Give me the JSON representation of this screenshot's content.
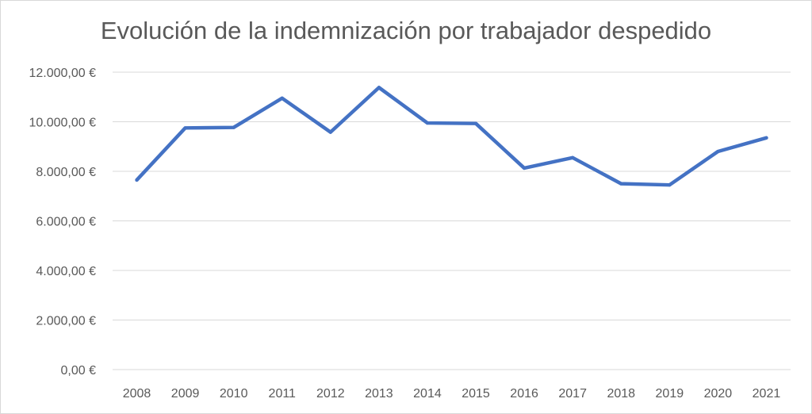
{
  "chart_data": {
    "type": "line",
    "title": "Evolución de la indemnización por trabajador despedido",
    "categories": [
      "2008",
      "2009",
      "2010",
      "2011",
      "2012",
      "2013",
      "2014",
      "2015",
      "2016",
      "2017",
      "2018",
      "2019",
      "2020",
      "2021"
    ],
    "series": [
      {
        "values": [
          7650,
          9750,
          9770,
          10950,
          9580,
          11380,
          9950,
          9930,
          8130,
          8550,
          7500,
          7450,
          8800,
          9350
        ]
      }
    ],
    "y_ticks": [
      0,
      2000,
      4000,
      6000,
      8000,
      10000,
      12000
    ],
    "y_tick_labels": [
      "0,00 €",
      "2.000,00 €",
      "4.000,00 €",
      "6.000,00 €",
      "8.000,00 €",
      "10.000,00 €",
      "12.000,00 €"
    ],
    "ylim": [
      0,
      12000
    ],
    "grid": true,
    "legend": "none",
    "colors": {
      "line": "#4472C4",
      "grid": "#d9d9d9",
      "text": "#595959"
    }
  }
}
